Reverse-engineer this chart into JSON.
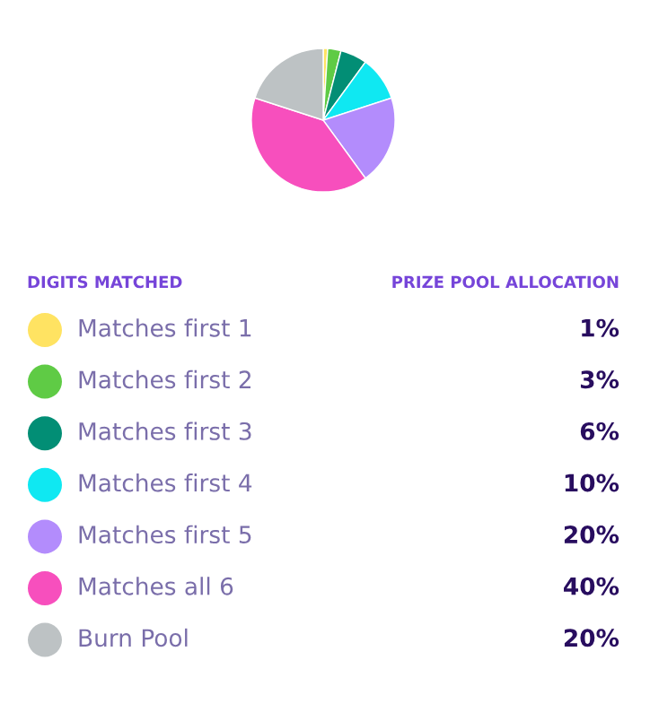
{
  "chart_data": {
    "type": "pie",
    "categories": [
      "Matches first 1",
      "Matches first 2",
      "Matches first 3",
      "Matches first 4",
      "Matches first 5",
      "Matches all 6",
      "Burn Pool"
    ],
    "values": [
      1,
      3,
      6,
      10,
      20,
      40,
      20
    ],
    "value_labels": [
      "1%",
      "3%",
      "6%",
      "10%",
      "20%",
      "40%",
      "20%"
    ],
    "colors": [
      "#ffe362",
      "#5fcb45",
      "#028e75",
      "#0fe8f2",
      "#b38cfc",
      "#f74fbd",
      "#bdc2c4"
    ],
    "legend_title": "DIGITS MATCHED",
    "annotations": [
      "PRIZE POOL ALLOCATION"
    ],
    "legend": "bottom"
  }
}
